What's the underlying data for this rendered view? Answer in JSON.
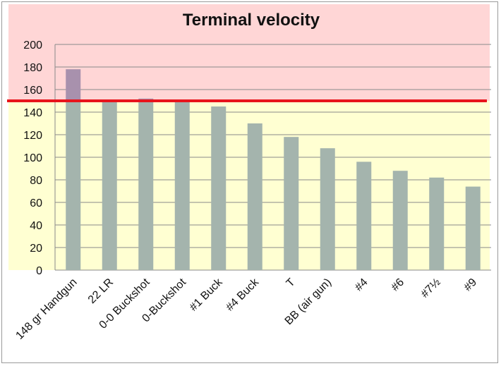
{
  "chart_data": {
    "type": "bar",
    "title": "Terminal velocity",
    "xlabel": "",
    "ylabel": "",
    "ylim": [
      0,
      200
    ],
    "yticks": [
      0,
      20,
      40,
      60,
      80,
      100,
      120,
      140,
      160,
      180,
      200
    ],
    "categories": [
      "148 gr Handgun",
      "22 LR",
      "0-0 Buckshot",
      "0-Buckshot",
      "#1 Buck",
      "#4 Buck",
      "T",
      "BB (air gun)",
      "#4",
      "#6",
      "#7½",
      "#9"
    ],
    "series": [
      {
        "values": [
          178,
          150,
          152,
          150,
          145,
          130,
          118,
          108,
          96,
          88,
          82,
          74
        ]
      }
    ],
    "threshold": {
      "value": 150,
      "color": "#e8141b"
    },
    "zones": {
      "above_color": "#ffd6d6",
      "below_color": "#ffffd2"
    },
    "bar_color": "#a4b4ad",
    "bar_above_threshold_color": "#a891ad",
    "grid": true,
    "legend": "none"
  }
}
